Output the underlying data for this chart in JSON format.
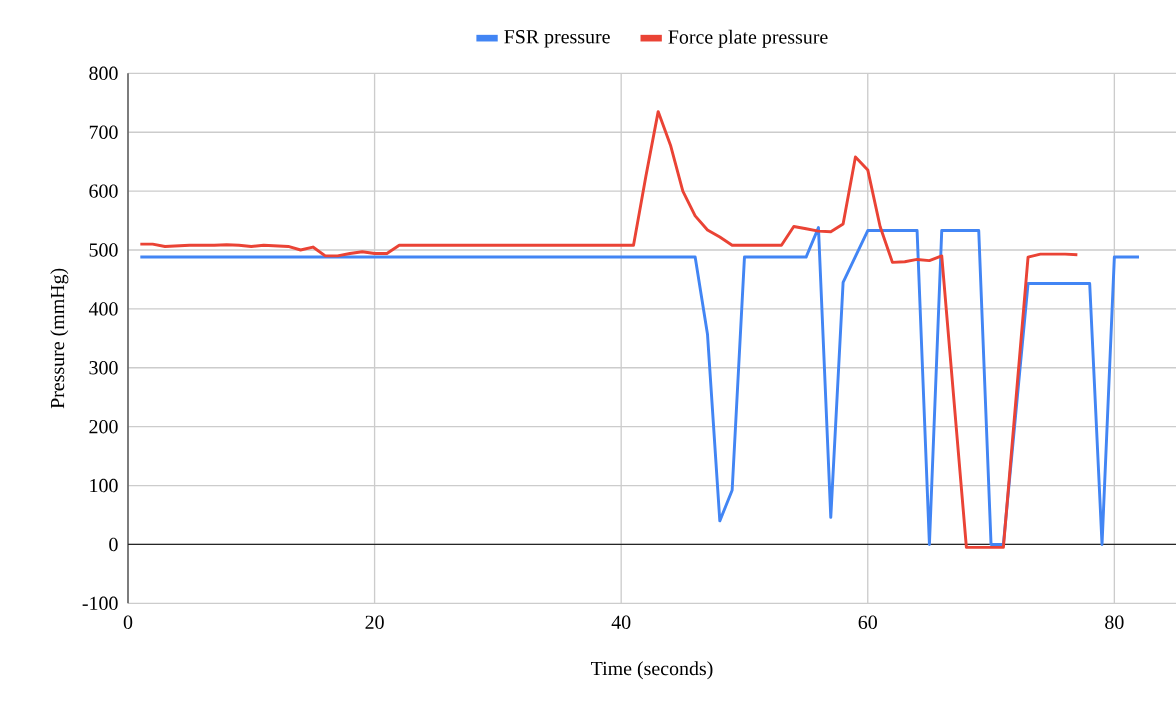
{
  "chart_data": {
    "type": "line",
    "xlabel": "Time (seconds)",
    "ylabel": "Pressure (mmHg)",
    "xlim": [
      0,
      85
    ],
    "ylim": [
      -100,
      800
    ],
    "xticks": [
      0,
      20,
      40,
      60,
      80
    ],
    "yticks": [
      -100,
      0,
      100,
      200,
      300,
      400,
      500,
      600,
      700,
      800
    ],
    "grid": true,
    "legend": "top",
    "marker": "none",
    "line_style": "solid",
    "series": [
      {
        "name": "FSR pressure",
        "color": "#4285f4",
        "x": [
          1,
          46,
          47,
          48,
          49,
          50,
          55,
          56,
          57,
          58,
          60,
          64,
          65,
          66,
          69,
          70,
          71,
          73,
          78,
          79,
          80,
          82
        ],
        "values": [
          488,
          488,
          357,
          40,
          92,
          488,
          488,
          538,
          46,
          445,
          533,
          533,
          0,
          533,
          533,
          0,
          0,
          443,
          443,
          0,
          488,
          488
        ]
      },
      {
        "name": "Force plate pressure",
        "color": "#ea4335",
        "x": [
          1,
          2,
          3,
          4,
          5,
          6,
          7,
          8,
          9,
          10,
          11,
          12,
          13,
          14,
          15,
          16,
          17,
          18,
          19,
          20,
          21,
          22,
          41,
          42,
          43,
          44,
          45,
          46,
          47,
          48,
          49,
          53,
          54,
          55,
          56,
          57,
          58,
          59,
          60,
          61,
          62,
          63,
          64,
          65,
          66,
          68,
          69,
          70,
          71,
          73,
          74,
          75,
          76,
          77
        ],
        "values": [
          510,
          510,
          506,
          507,
          508,
          508,
          508,
          509,
          508,
          506,
          508,
          507,
          506,
          500,
          505,
          490,
          490,
          494,
          497,
          494,
          494,
          508,
          508,
          625,
          735,
          678,
          600,
          558,
          534,
          522,
          508,
          508,
          540,
          536,
          532,
          531,
          544,
          658,
          636,
          540,
          479,
          480,
          484,
          482,
          490,
          -5,
          -5,
          -5,
          -5,
          488,
          493,
          493,
          493,
          492
        ]
      }
    ]
  }
}
